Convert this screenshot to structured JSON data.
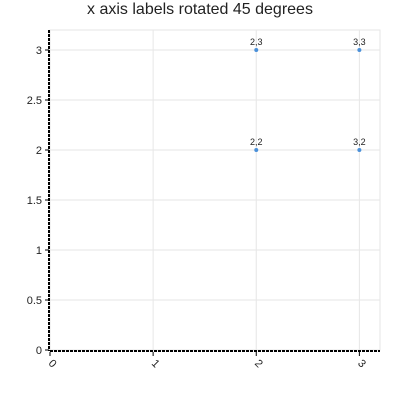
{
  "chart_data": {
    "type": "scatter",
    "title": "x axis labels rotated 45 degrees",
    "xlabel": "",
    "ylabel": "",
    "x_ticks": [
      "0",
      "1",
      "2",
      "3"
    ],
    "y_ticks": [
      "0",
      "0.5",
      "1",
      "1.5",
      "2",
      "2.5",
      "3"
    ],
    "xlim": [
      0,
      3.2
    ],
    "ylim": [
      0,
      3.2
    ],
    "grid": true,
    "x_tick_rotation_deg": 45,
    "point_color": "#4a90d9",
    "points": [
      {
        "x": 2,
        "y": 3,
        "label": "2,3"
      },
      {
        "x": 3,
        "y": 3,
        "label": "3,3"
      },
      {
        "x": 2,
        "y": 2,
        "label": "2,2"
      },
      {
        "x": 3,
        "y": 2,
        "label": "3,2"
      }
    ]
  }
}
